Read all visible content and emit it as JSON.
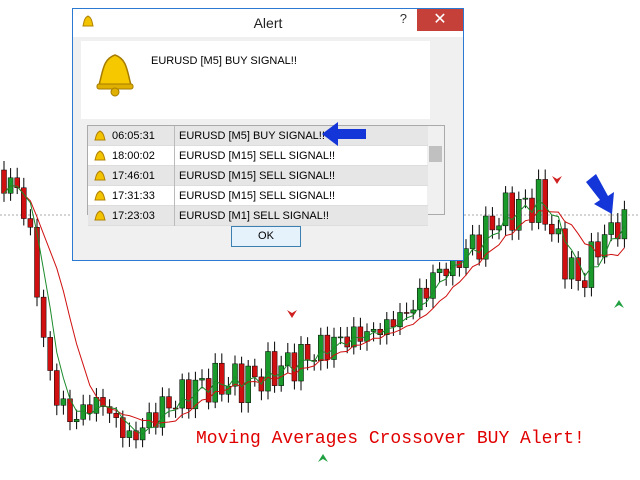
{
  "window": {
    "title": "Alert",
    "message": "EURUSD [M5]  BUY SIGNAL!!",
    "button": "OK"
  },
  "alerts": [
    {
      "time": "06:05:31",
      "message": "EURUSD [M5]  BUY SIGNAL!!"
    },
    {
      "time": "18:00:02",
      "message": "EURUSD [M15]  SELL SIGNAL!!"
    },
    {
      "time": "17:46:01",
      "message": "EURUSD [M15]  SELL SIGNAL!!"
    },
    {
      "time": "17:31:33",
      "message": "EURUSD [M15]  SELL SIGNAL!!"
    },
    {
      "time": "17:23:03",
      "message": "EURUSD [M1]  SELL SIGNAL!!"
    }
  ],
  "caption": "Moving Averages Crossover BUY Alert!"
}
